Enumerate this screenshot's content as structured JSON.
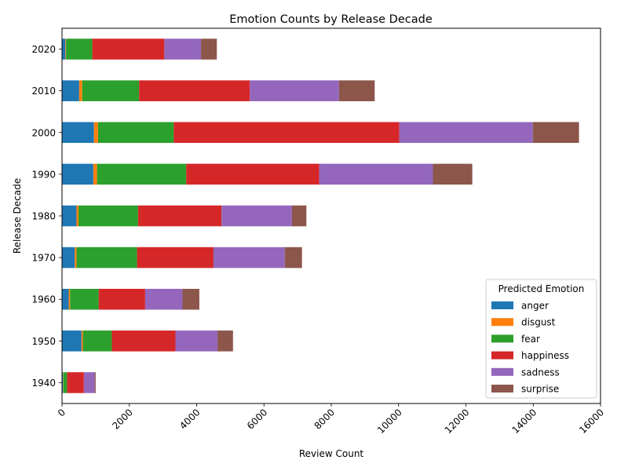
{
  "chart_data": {
    "type": "bar",
    "orientation": "horizontal",
    "stacked": true,
    "title": "Emotion Counts by Release Decade",
    "xlabel": "Review Count",
    "ylabel": "Release Decade",
    "xlim": [
      0,
      16000
    ],
    "x_ticks": [
      0,
      2000,
      4000,
      6000,
      8000,
      10000,
      12000,
      14000,
      16000
    ],
    "x_tick_rotation": 45,
    "grid": false,
    "categories": [
      "1940",
      "1950",
      "1960",
      "1970",
      "1980",
      "1990",
      "2000",
      "2010",
      "2020"
    ],
    "legend": {
      "title": "Predicted Emotion",
      "placement": "lower-right"
    },
    "series": [
      {
        "name": "anger",
        "color": "#1f77b4",
        "values": [
          30,
          580,
          200,
          380,
          430,
          930,
          950,
          510,
          100
        ]
      },
      {
        "name": "disgust",
        "color": "#ff7f0e",
        "values": [
          10,
          40,
          40,
          50,
          60,
          110,
          120,
          90,
          20
        ]
      },
      {
        "name": "fear",
        "color": "#2ca02c",
        "values": [
          110,
          860,
          850,
          1800,
          1770,
          2650,
          2250,
          1690,
          780
        ]
      },
      {
        "name": "happiness",
        "color": "#d62728",
        "values": [
          500,
          1890,
          1380,
          2270,
          2480,
          3950,
          6700,
          3290,
          2140
        ]
      },
      {
        "name": "sadness",
        "color": "#9467bd",
        "values": [
          320,
          1250,
          1110,
          2120,
          2090,
          3380,
          3970,
          2650,
          1090
        ]
      },
      {
        "name": "surprise",
        "color": "#8c564b",
        "values": [
          30,
          460,
          500,
          510,
          430,
          1170,
          1370,
          1060,
          470
        ]
      }
    ]
  }
}
